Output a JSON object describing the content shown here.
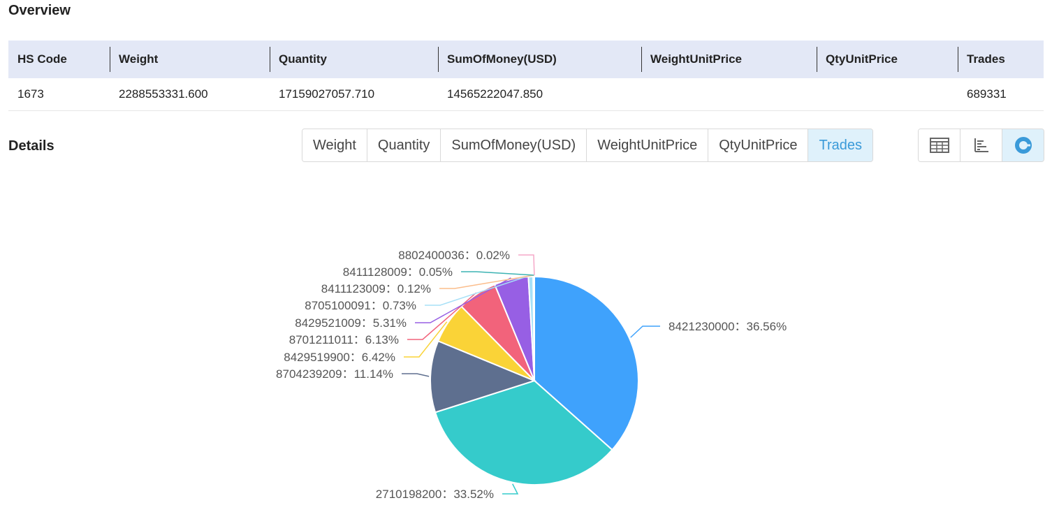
{
  "overview": {
    "title": "Overview",
    "headers": [
      "HS Code",
      "Weight",
      "Quantity",
      "SumOfMoney(USD)",
      "WeightUnitPrice",
      "QtyUnitPrice",
      "Trades"
    ],
    "row": [
      "1673",
      "2288553331.600",
      "17159027057.710",
      "14565222047.850",
      "",
      "",
      "689331"
    ]
  },
  "details": {
    "title": "Details",
    "metric_tabs": [
      "Weight",
      "Quantity",
      "SumOfMoney(USD)",
      "WeightUnitPrice",
      "QtyUnitPrice",
      "Trades"
    ],
    "active_metric": "Trades",
    "view_tabs": [
      {
        "icon": "table-icon",
        "active": false
      },
      {
        "icon": "bar-chart-icon",
        "active": false
      },
      {
        "icon": "pie-chart-icon",
        "active": true
      }
    ]
  },
  "colors": {
    "accent": "#3a9ad9",
    "header_bg": "#e3e8f6",
    "active_tab_bg": "#dff1fb"
  },
  "chart_data": {
    "type": "pie",
    "title": "",
    "slices": [
      {
        "label": "8421230000",
        "value": 36.56,
        "display": "8421230000：36.56%",
        "color": "#3fa2fc"
      },
      {
        "label": "2710198200",
        "value": 33.52,
        "display": "2710198200：33.52%",
        "color": "#35cbcb"
      },
      {
        "label": "8704239209",
        "value": 11.14,
        "display": "8704239209：11.14%",
        "color": "#5e6f8f"
      },
      {
        "label": "8429519900",
        "value": 6.42,
        "display": "8429519900：6.42%",
        "color": "#fad337"
      },
      {
        "label": "8701211011",
        "value": 6.13,
        "display": "8701211011：6.13%",
        "color": "#f2637b"
      },
      {
        "label": "8429521009",
        "value": 5.31,
        "display": "8429521009：5.31%",
        "color": "#975fe4"
      },
      {
        "label": "8705100091",
        "value": 0.73,
        "display": "8705100091：0.73%",
        "color": "#a7e0f7"
      },
      {
        "label": "8411123009",
        "value": 0.12,
        "display": "8411123009：0.12%",
        "color": "#fbbd8c"
      },
      {
        "label": "8411128009",
        "value": 0.05,
        "display": "8411128009：0.05%",
        "color": "#3cb3b3"
      },
      {
        "label": "8802400036",
        "value": 0.02,
        "display": "8802400036：0.02%",
        "color": "#f5a8c8"
      }
    ]
  }
}
